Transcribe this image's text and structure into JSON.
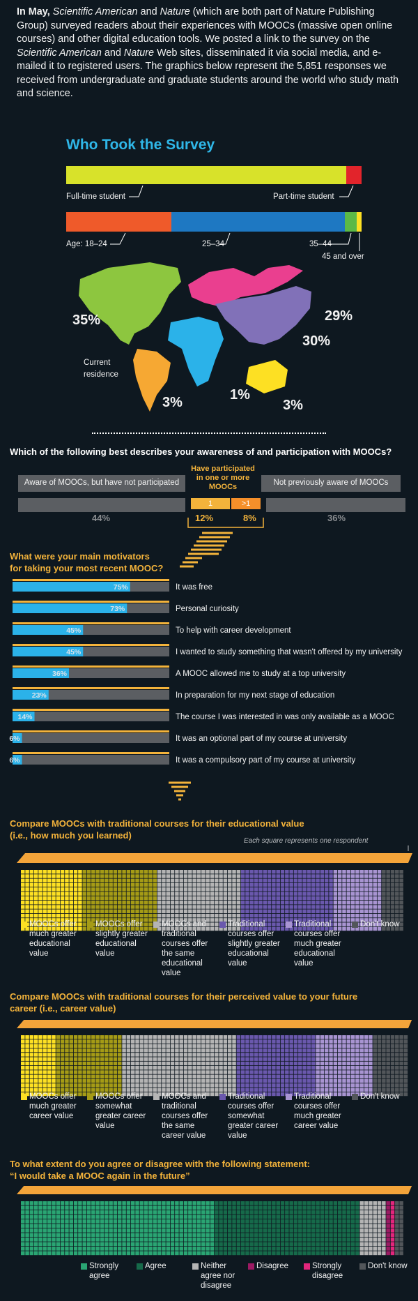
{
  "intro": {
    "lead": "In May,",
    "sa": "Scientific American",
    "and1": "and",
    "nature": "Nature",
    "rest1": "(which are both part of Nature Publishing Group) surveyed readers about their experiences with MOOCs (massive open online courses) and other digital education tools. We posted a link to the survey on the",
    "sa2": "Scientific American",
    "and2": "and",
    "nature2": "Nature",
    "rest2": "Web sites, disseminated it via social media, and e-mailed it to registered users. The graphics below represent the 5,851 responses we received from undergraduate and graduate students around the world who study math and science."
  },
  "colors": {
    "background": "#0e1820",
    "yellow_green": "#d8e22a",
    "red": "#e2242b",
    "orange_red": "#ef5a2a",
    "blue": "#1e78c2",
    "green": "#5cb947",
    "yellow": "#fde023",
    "survey_title": "#2fb7e8",
    "gold": "#f3b33b",
    "bar_blue": "#2bb2e9",
    "bar_gray": "#5b5e62"
  },
  "who": {
    "title": "Who Took the Survey",
    "student_labels": [
      "Full-time student",
      "Part-time student"
    ],
    "age_labels": [
      "Age: 18–24",
      "25–34",
      "35–44",
      "45 and over"
    ],
    "map_caption": "Current residence",
    "map_regions": [
      {
        "name": "North America",
        "percent": "35%",
        "color": "#8dc63f"
      },
      {
        "name": "South America",
        "percent": "3%",
        "color": "#f6a833"
      },
      {
        "name": "Africa",
        "percent": "1%",
        "color": "#2bb2e9"
      },
      {
        "name": "Europe",
        "percent": "29%",
        "color": "#ea3f8f"
      },
      {
        "name": "Asia",
        "percent": "30%",
        "color": "#8171b8"
      },
      {
        "name": "Oceania",
        "percent": "3%",
        "color": "#fde023"
      }
    ]
  },
  "awareness": {
    "question": "Which of the following best describes your awareness of and participation with MOOCs?",
    "left_label": "Aware of MOOCs, but have not participated",
    "middle_label": "Have participated in one or more MOOCs",
    "right_label": "Not previously aware of MOOCs",
    "middle_sub": [
      "1",
      ">1"
    ],
    "percents": [
      "44%",
      "12%",
      "8%",
      "36%"
    ]
  },
  "motivators": {
    "title_line1": "What were your main motivators",
    "title_line2": "for taking your most recent MOOC?"
  },
  "compare_edu": {
    "title_line1": "Compare MOOCs with traditional courses for their educational value",
    "title_line2": "(i.e., how much you learned)",
    "note": "Each square represents one respondent",
    "legend": [
      {
        "text": "MOOCs offer much greater educational value",
        "color": "#fde023"
      },
      {
        "text": "MOOCs offer slightly greater educational value",
        "color": "#a59b16"
      },
      {
        "text": "MOOCs and traditional courses offer the same educational value",
        "color": "#b4b4b4"
      },
      {
        "text": "Traditional courses offer slightly greater educational value",
        "color": "#6a58ad"
      },
      {
        "text": "Traditional courses offer much greater educational value",
        "color": "#a894d1"
      },
      {
        "text": "Don't know",
        "color": "#52565a"
      }
    ]
  },
  "compare_career": {
    "title_line1": "Compare MOOCs with traditional courses for their perceived value to your future",
    "title_line2": "career (i.e., career value)",
    "legend": [
      {
        "text": "MOOCs offer much greater career value",
        "color": "#fde023"
      },
      {
        "text": "MOOCs offer somewhat greater career value",
        "color": "#a59b16"
      },
      {
        "text": "MOOCs and traditional courses offer the same career value",
        "color": "#b4b4b4"
      },
      {
        "text": "Traditional courses offer somewhat greater career value",
        "color": "#6a58ad"
      },
      {
        "text": "Traditional courses offer much greater career value",
        "color": "#a894d1"
      },
      {
        "text": "Don't know",
        "color": "#52565a"
      }
    ]
  },
  "again": {
    "title_line1": "To what extent do you agree or disagree with the following statement:",
    "title_line2": "“I would take a MOOC again in the future”",
    "legend": [
      {
        "text": "Strongly agree",
        "color": "#2aa573"
      },
      {
        "text": "Agree",
        "color": "#166a4a"
      },
      {
        "text": "Neither agree nor disagree",
        "color": "#b4b4b4"
      },
      {
        "text": "Disagree",
        "color": "#9c1a63"
      },
      {
        "text": "Strongly disagree",
        "color": "#e2267c"
      },
      {
        "text": "Don't know",
        "color": "#52565a"
      }
    ]
  },
  "chart_data": [
    {
      "type": "bar",
      "title": "Who Took the Survey",
      "categories": [
        "Full-time student",
        "Part-time student"
      ],
      "values": [
        94,
        6
      ],
      "unit": "%"
    },
    {
      "type": "bar",
      "categories": [
        "Age: 18–24",
        "25–34",
        "35–44",
        "45 and over"
      ],
      "values": [
        36,
        57,
        5,
        2
      ],
      "unit": "%"
    },
    {
      "type": "bar",
      "title": "Which of the following best describes your awareness of and participation with MOOCs?",
      "categories": [
        "Aware of MOOCs, but have not participated",
        "1",
        ">1",
        "Not previously aware of MOOCs"
      ],
      "values": [
        44,
        12,
        8,
        36
      ],
      "labels": [
        "44%",
        "12%",
        "8%",
        "36%"
      ]
    },
    {
      "type": "bar",
      "title": "What were your main motivators for taking your most recent MOOC?",
      "categories": [
        "It was free",
        "Personal curiosity",
        "To help with career development",
        "I wanted to study something that wasn't offered by my university",
        "A MOOC allowed me to study at a top university",
        "In preparation for my next stage of education",
        "The course I was interested in was only available as a MOOC",
        "It was an optional part of my course at university",
        "It was a compulsory part of my course at university"
      ],
      "values": [
        75,
        73,
        45,
        45,
        36,
        23,
        14,
        6,
        6
      ],
      "labels": [
        "75%",
        "73%",
        "45%",
        "45%",
        "36%",
        "23%",
        "14%",
        "6%",
        "6%"
      ],
      "ylim": [
        0,
        100
      ]
    },
    {
      "type": "bar",
      "title": "Compare MOOCs with traditional courses for their educational value (i.e., how much you learned)",
      "categories": [
        "MOOCs offer much greater educational value",
        "MOOCs offer slightly greater educational value",
        "MOOCs and traditional courses offer the same educational value",
        "Traditional courses offer slightly greater educational value",
        "Traditional courses offer much greater educational value",
        "Don't know"
      ],
      "values": [
        16,
        19,
        22,
        24,
        13,
        6
      ],
      "unit": "% of respondents"
    },
    {
      "type": "bar",
      "title": "Compare MOOCs with traditional courses for their perceived value to your future career (i.e., career value)",
      "categories": [
        "MOOCs offer much greater career value",
        "MOOCs offer somewhat greater career value",
        "MOOCs and traditional courses offer the same career value",
        "Traditional courses offer somewhat greater career value",
        "Traditional courses offer much greater career value",
        "Don't know"
      ],
      "values": [
        9,
        17,
        30,
        20,
        15,
        9
      ],
      "unit": "% of respondents"
    },
    {
      "type": "bar",
      "title": "To what extent do you agree or disagree with the following statement: “I would take a MOOC again in the future”",
      "categories": [
        "Strongly agree",
        "Agree",
        "Neither agree nor disagree",
        "Disagree",
        "Strongly disagree",
        "Don't know"
      ],
      "values": [
        50,
        38,
        7,
        1.5,
        1.5,
        2
      ],
      "unit": "% of respondents"
    }
  ]
}
